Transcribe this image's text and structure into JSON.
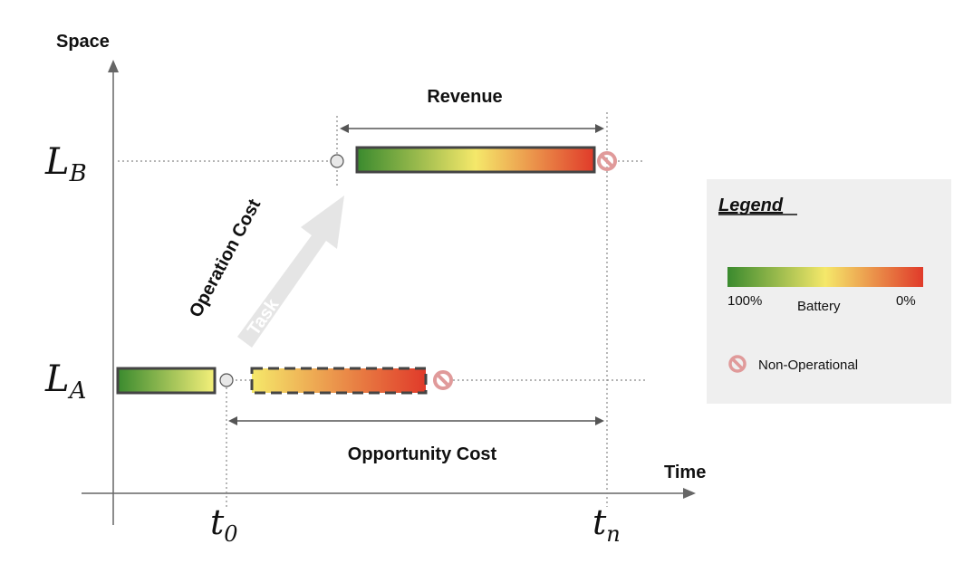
{
  "axes": {
    "y_label": "Space",
    "x_label": "Time"
  },
  "locations": {
    "a": {
      "base": "L",
      "sub": "A"
    },
    "b": {
      "base": "L",
      "sub": "B"
    }
  },
  "times": {
    "t0": {
      "base": "t",
      "sub": "0"
    },
    "tn": {
      "base": "t",
      "sub": "n"
    }
  },
  "annotations": {
    "revenue": "Revenue",
    "opportunity_cost": "Opportunity Cost",
    "operation_cost": "Operation Cost",
    "task": "Task"
  },
  "legend": {
    "title": "Legend",
    "battery_label": "Battery",
    "battery_full": "100%",
    "battery_empty": "0%",
    "non_operational": "Non-Operational"
  },
  "colors": {
    "battery_full": "#3a8a2e",
    "battery_mid": "#f5e86a",
    "battery_empty": "#e03a2a",
    "non_operational": "#e09a9a",
    "axis": "#666666",
    "legend_bg": "#efefef"
  }
}
